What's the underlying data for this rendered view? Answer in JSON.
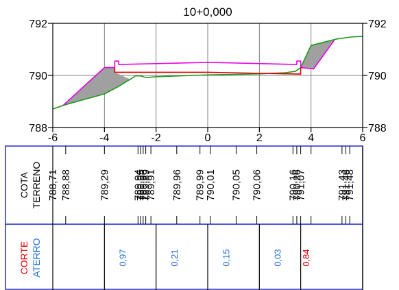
{
  "chart_data": {
    "type": "line",
    "title": "10+0,000",
    "xlim": [
      -6,
      6
    ],
    "ylim": [
      788,
      792
    ],
    "x_ticks": [
      -6,
      -4,
      -2,
      0,
      2,
      4,
      6
    ],
    "x_tick_labels": [
      "-6",
      "-4",
      "-2",
      "0",
      "2",
      "4",
      "6"
    ],
    "y_ticks": [
      788,
      790,
      792
    ],
    "y_tick_labels": [
      "788",
      "790",
      "792"
    ],
    "grid": true,
    "series": [
      {
        "key": "terrain",
        "color": "#1a9a1a",
        "x": [
          -6,
          -5.5,
          -4,
          -3.5,
          -3,
          -2.8,
          -2.6,
          -2.4,
          -2,
          0,
          2,
          3,
          3.4,
          3.6,
          4,
          5,
          5.6,
          6
        ],
        "y": [
          788.71,
          788.88,
          789.29,
          789.55,
          789.85,
          789.98,
          789.98,
          789.92,
          789.95,
          790.02,
          790.06,
          790.1,
          790.16,
          790.3,
          791.15,
          791.4,
          791.48,
          791.5
        ]
      },
      {
        "key": "cut_slope_left",
        "color": "#e600e6",
        "x": [
          -5.6,
          -4,
          -3.6
        ],
        "y": [
          788.85,
          790.3,
          790.3
        ]
      },
      {
        "key": "road_surface",
        "color": "#e600e6",
        "x": [
          -3.6,
          -3.6,
          -3.45,
          -3.45,
          0,
          3.45,
          3.45,
          3.6,
          3.6
        ],
        "y": [
          790.3,
          790.55,
          790.55,
          790.42,
          790.5,
          790.42,
          790.55,
          790.55,
          790.3
        ]
      },
      {
        "key": "cut_slope_right",
        "color": "#e600e6",
        "x": [
          3.6,
          4.1,
          4.9
        ],
        "y": [
          790.3,
          790.25,
          791.35
        ]
      },
      {
        "key": "subgrade",
        "color": "#dd0000",
        "x": [
          -3.6,
          -3.6,
          0,
          3.6,
          3.6
        ],
        "y": [
          790.3,
          790.12,
          790.12,
          790.05,
          790.3
        ]
      }
    ],
    "fills": [
      {
        "key": "left_fill",
        "color": "#a0a0a0",
        "x": [
          -5.6,
          -4,
          -3.6,
          -3.6,
          -3.0,
          -3.5,
          -4,
          -5.5
        ],
        "y": [
          788.85,
          790.3,
          790.3,
          790.12,
          789.85,
          789.55,
          789.29,
          788.88
        ]
      },
      {
        "key": "right_fill",
        "color": "#a0a0a0",
        "x": [
          3.6,
          3.6,
          4.1,
          4.9,
          4.0,
          3.6
        ],
        "y": [
          790.05,
          790.3,
          790.25,
          791.35,
          791.15,
          790.3
        ]
      }
    ],
    "table": {
      "row1_label_a": "COTA",
      "row1_label_b": "TERRENO",
      "row2_label_a": "CORTE",
      "row2_label_b": "ATERRO",
      "elevations": [
        {
          "x": -6,
          "label": "788,71"
        },
        {
          "x": -5.5,
          "label": "788,88"
        },
        {
          "x": -4,
          "label": "789,29"
        },
        {
          "x": -2.7,
          "label": "789,94"
        },
        {
          "x": -2.6,
          "label": "789,95"
        },
        {
          "x": -2.5,
          "label": "789,96"
        },
        {
          "x": -2.4,
          "label": "789,89"
        },
        {
          "x": -2.2,
          "label": "789,91"
        },
        {
          "x": -1.2,
          "label": "789,96"
        },
        {
          "x": -0.3,
          "label": "789,99"
        },
        {
          "x": 0.1,
          "label": "790,01"
        },
        {
          "x": 1.1,
          "label": "790,05"
        },
        {
          "x": 1.9,
          "label": "790,06"
        },
        {
          "x": 3.3,
          "label": "790,16"
        },
        {
          "x": 3.45,
          "label": "790,26"
        },
        {
          "x": 3.6,
          "label": "791,07"
        },
        {
          "x": 5.2,
          "label": "791,43"
        },
        {
          "x": 5.35,
          "label": "791,46"
        },
        {
          "x": 5.5,
          "label": "791,48"
        }
      ],
      "station_ticks": [
        -6,
        -5.5,
        -4,
        -2.7,
        -2.6,
        -2.5,
        -2.4,
        -2.2,
        -1.2,
        -0.3,
        0.1,
        1.1,
        1.9,
        3.3,
        3.45,
        3.6,
        4.0,
        5.2,
        5.35,
        5.5
      ],
      "volume_ticks": [
        -4,
        -2,
        0,
        2,
        3.6
      ],
      "volumes": [
        {
          "x": -3.3,
          "label": "0,97",
          "kind": "aterro"
        },
        {
          "x": -1.3,
          "label": "0,21",
          "kind": "aterro"
        },
        {
          "x": 0.7,
          "label": "0,15",
          "kind": "aterro"
        },
        {
          "x": 2.7,
          "label": "0,03",
          "kind": "aterro"
        },
        {
          "x": 3.8,
          "label": "0,84",
          "kind": "corte"
        }
      ]
    },
    "colors": {
      "corte": "#e60000",
      "aterro": "#1f6fd6",
      "grid": "#7f7f7f",
      "frame": "#1a1ad6"
    }
  }
}
